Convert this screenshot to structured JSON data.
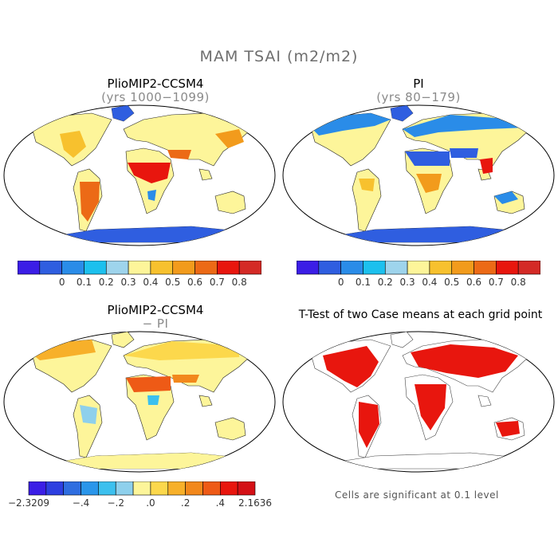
{
  "title": "MAM TSAI (m2/m2)",
  "panels": [
    {
      "id": "plio",
      "title": "PlioMIP2-CCSM4",
      "subtitle": "(yrs 1000−1099)"
    },
    {
      "id": "pi",
      "title": "PI",
      "subtitle": "(yrs 80−179)"
    },
    {
      "id": "diff",
      "title": "PlioMIP2-CCSM4",
      "subtitle": "− PI"
    },
    {
      "id": "ttest",
      "title": "T-Test of two Case means at each grid point",
      "subtitle": ""
    }
  ],
  "colorbar_abs": {
    "colors": [
      "#3b1ee6",
      "#2f5ee0",
      "#2a8ce8",
      "#1cc0ee",
      "#9ed4ec",
      "#fdf59a",
      "#f7c12e",
      "#f29b1c",
      "#ec6a16",
      "#e8160e",
      "#d42a26"
    ],
    "labels": [
      "0",
      "0.1",
      "0.2",
      "0.3",
      "0.4",
      "0.5",
      "0.6",
      "0.7",
      "0.8"
    ]
  },
  "colorbar_diff": {
    "colors": [
      "#3b1ee6",
      "#2d3fe0",
      "#2f6ee0",
      "#2a96ea",
      "#3cc0ee",
      "#8ed0ec",
      "#fdf59a",
      "#fcd84c",
      "#f7b02a",
      "#f2881c",
      "#ee5a16",
      "#e8160e",
      "#d41016"
    ],
    "labels": [
      "−2.3209",
      "−.4",
      "−.2",
      ".0",
      ".2",
      ".4",
      "2.1636"
    ]
  },
  "note": "Cells are significant at 0.1 level"
}
